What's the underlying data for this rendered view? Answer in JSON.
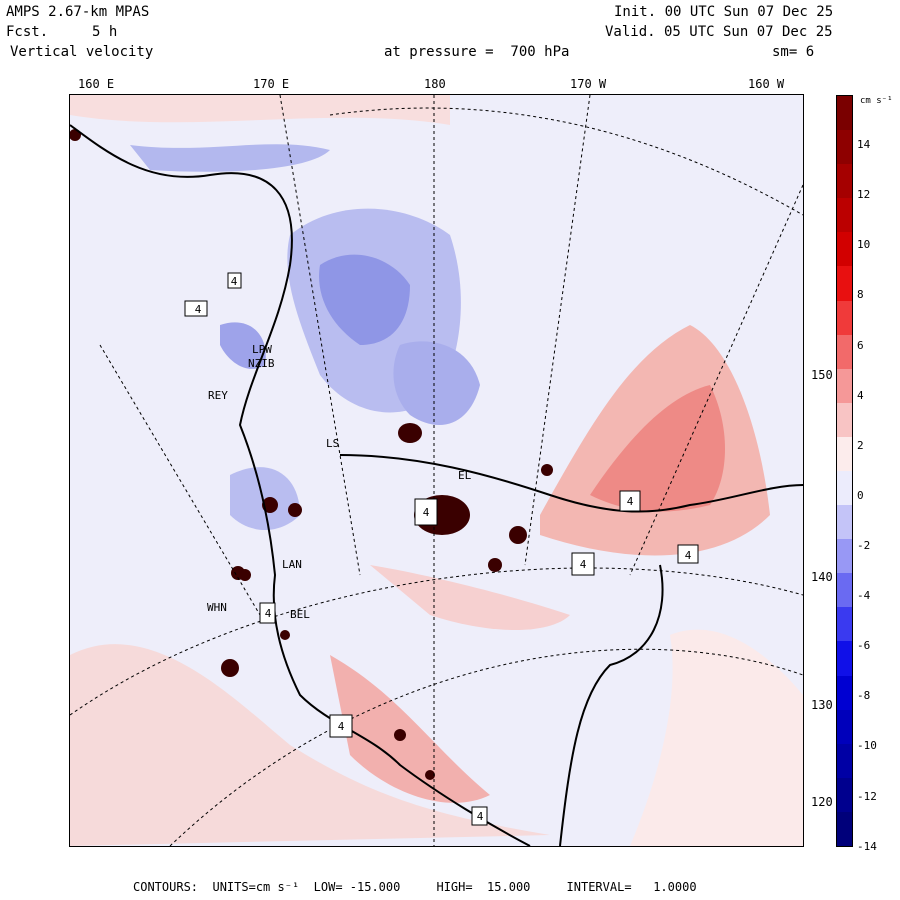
{
  "header": {
    "model": "AMPS 2.67-km MPAS",
    "fcst_label": "Fcst.",
    "fcst_value": "5 h",
    "field": "Vertical velocity",
    "init": "Init. 00 UTC Sun 07 Dec 25",
    "valid": "Valid. 05 UTC Sun 07 Dec 25",
    "pressure": "at pressure =  700 hPa",
    "smoothing": "sm= 6"
  },
  "lon_labels": [
    "160 E",
    "170 E",
    "180",
    "170 W",
    "160 W"
  ],
  "lat_labels": [
    "150 W",
    "140 W",
    "130 W",
    "120 W"
  ],
  "stations": [
    "LPW",
    "NZIB",
    "REY",
    "LAN",
    "WHN",
    "BEL",
    "LS",
    "EL"
  ],
  "cell_markers": [
    "4",
    "4",
    "4",
    "4",
    "4",
    "4",
    "4",
    "4",
    "4"
  ],
  "colorbar": {
    "units": "cm s⁻¹",
    "labels": [
      "14",
      "12",
      "10",
      "8",
      "6",
      "4",
      "2",
      "0",
      "-2",
      "-4",
      "-6",
      "-8",
      "-10",
      "-12",
      "-14"
    ],
    "colors": [
      "#7a0000",
      "#8e0000",
      "#a50000",
      "#bb0000",
      "#d20000",
      "#e81010",
      "#f03a3a",
      "#f26a6a",
      "#f59898",
      "#f8c4c4",
      "#fcecec",
      "#ececfc",
      "#c4c4f8",
      "#9898f5",
      "#6a6af2",
      "#3a3af0",
      "#1010e8",
      "#0000d2",
      "#0000bb",
      "#0000a5",
      "#00008e",
      "#00007a"
    ]
  },
  "footer": {
    "contours_label": "CONTOURS:",
    "units_label": "UNITS=cm s⁻¹",
    "low": "LOW= -15.000",
    "high": "HIGH=  15.000",
    "interval": "INTERVAL=   1.0000"
  }
}
